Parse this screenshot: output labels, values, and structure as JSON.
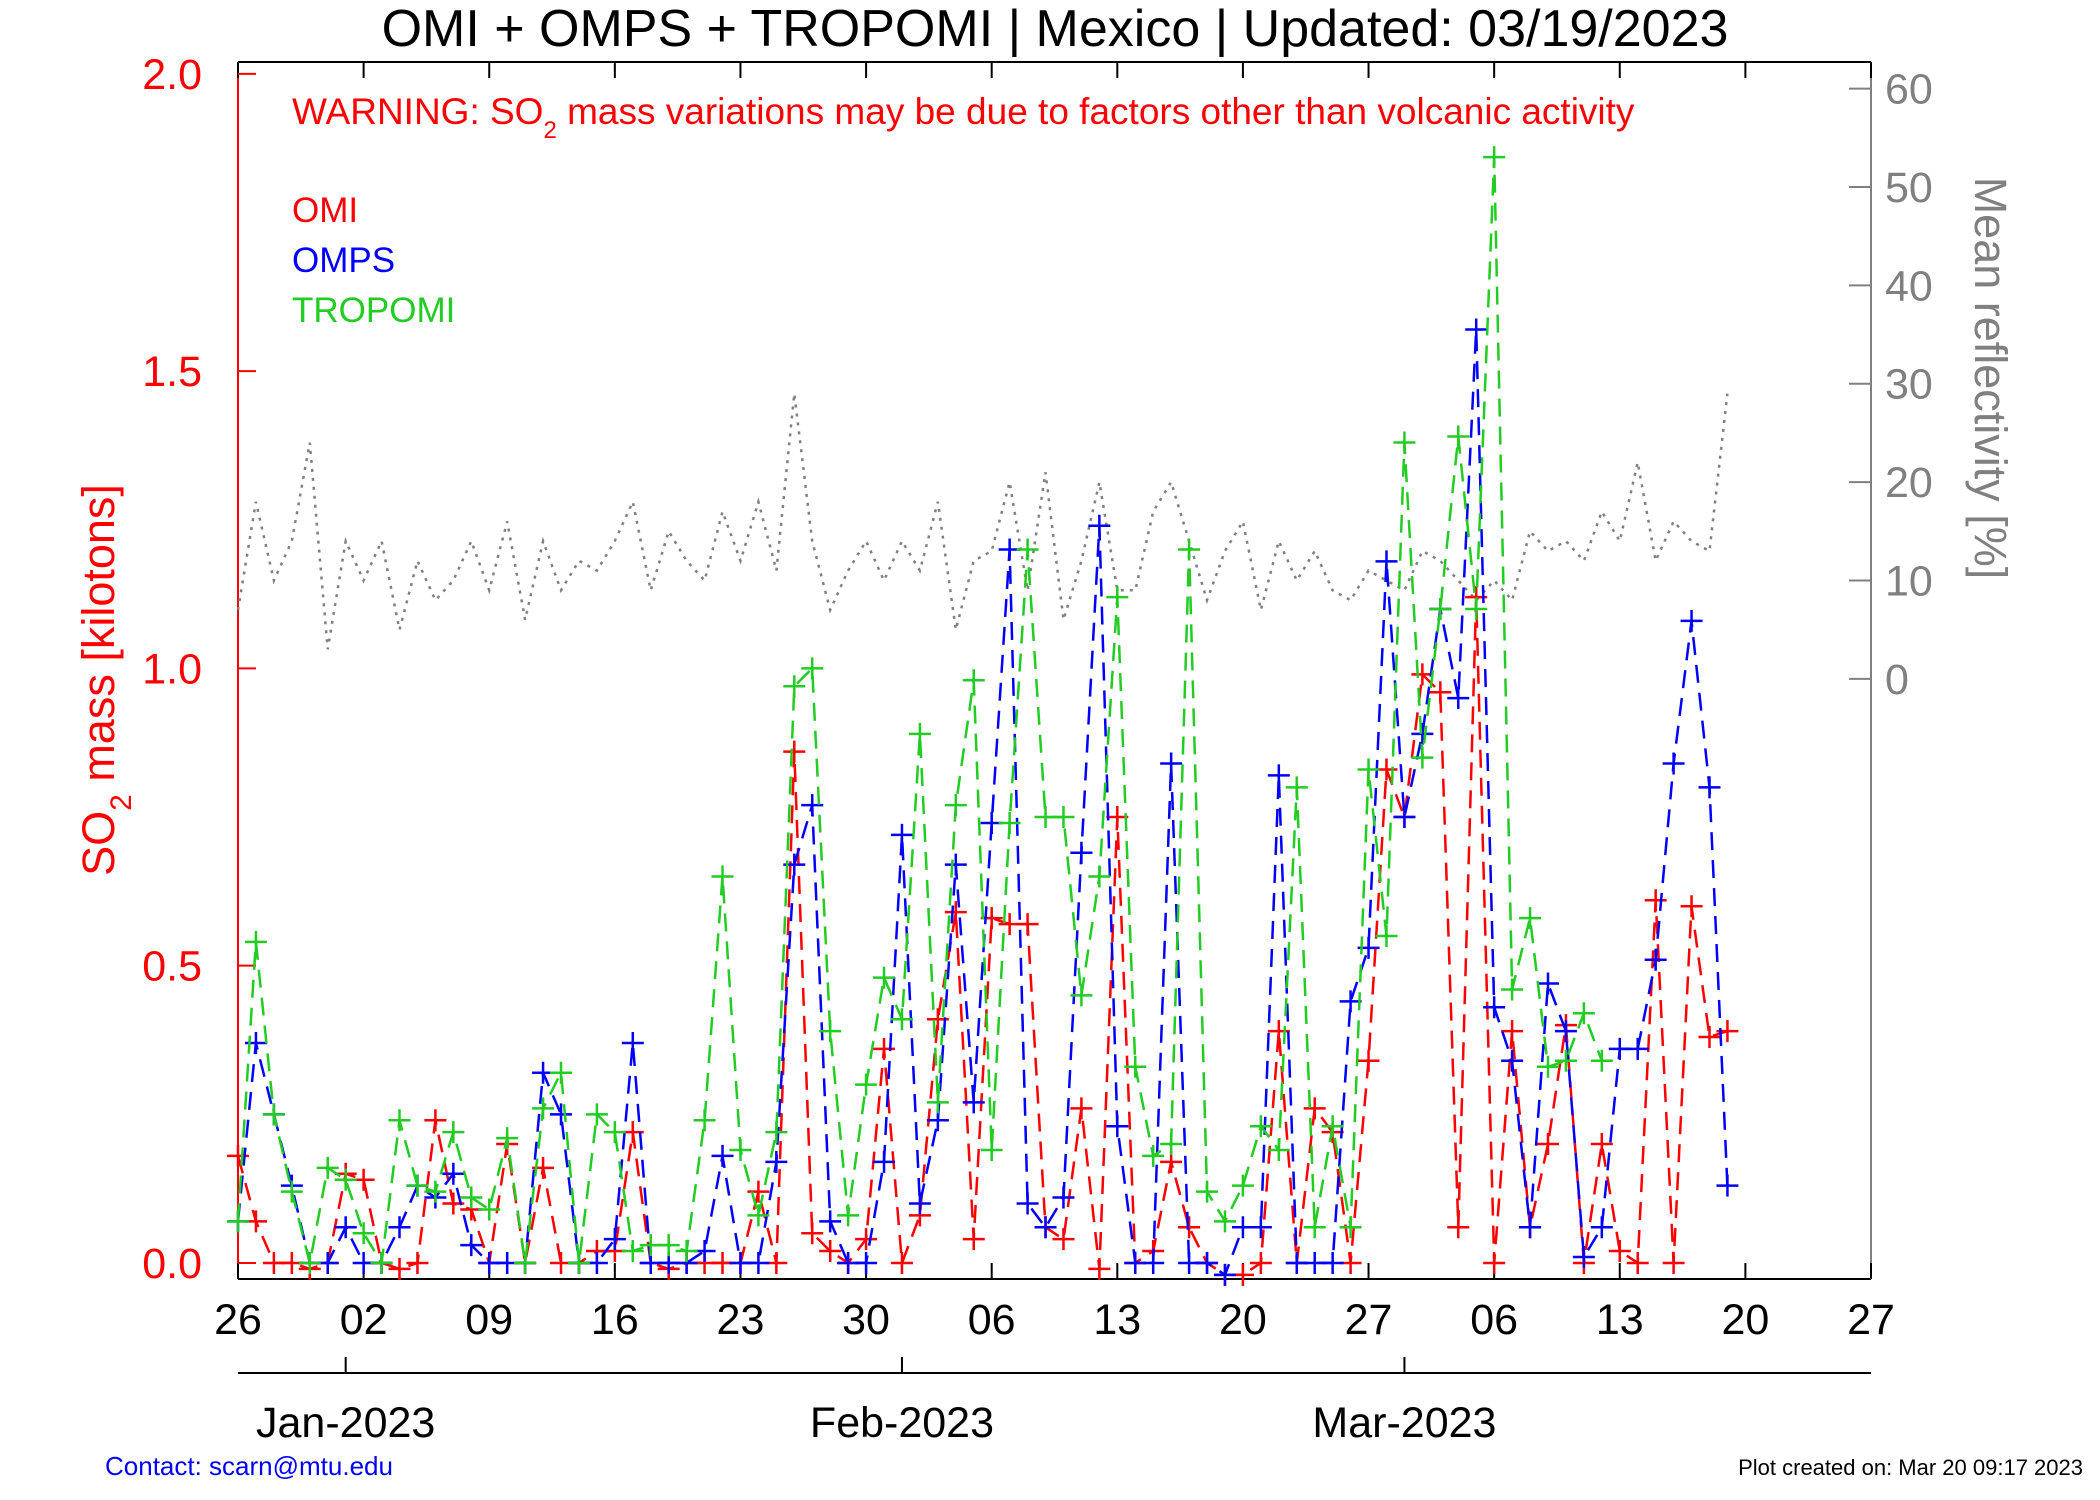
{
  "chart_data": {
    "type": "line",
    "title": "OMI + OMPS + TROPOMI | Mexico | Updated: 03/19/2023",
    "annotation": [
      "WARNING: SO",
      "2",
      " mass variations may be due to factors other than volcanic activity"
    ],
    "annotation_color": "#ff0000",
    "ylabel": [
      "SO",
      "2",
      " mass [kilotons]"
    ],
    "y_color": "#ff0000",
    "y2label": "Mean reflectivity [%]",
    "y2_color": "#808080",
    "x": [
      "2022-12-26",
      "2022-12-27",
      "2022-12-28",
      "2022-12-29",
      "2022-12-30",
      "2022-12-31",
      "2023-01-01",
      "2023-01-02",
      "2023-01-03",
      "2023-01-04",
      "2023-01-05",
      "2023-01-06",
      "2023-01-07",
      "2023-01-08",
      "2023-01-09",
      "2023-01-10",
      "2023-01-11",
      "2023-01-12",
      "2023-01-13",
      "2023-01-14",
      "2023-01-15",
      "2023-01-16",
      "2023-01-17",
      "2023-01-18",
      "2023-01-19",
      "2023-01-20",
      "2023-01-21",
      "2023-01-22",
      "2023-01-23",
      "2023-01-24",
      "2023-01-25",
      "2023-01-26",
      "2023-01-27",
      "2023-01-28",
      "2023-01-29",
      "2023-01-30",
      "2023-01-31",
      "2023-02-01",
      "2023-02-02",
      "2023-02-03",
      "2023-02-04",
      "2023-02-05",
      "2023-02-06",
      "2023-02-07",
      "2023-02-08",
      "2023-02-09",
      "2023-02-10",
      "2023-02-11",
      "2023-02-12",
      "2023-02-13",
      "2023-02-14",
      "2023-02-15",
      "2023-02-16",
      "2023-02-17",
      "2023-02-18",
      "2023-02-19",
      "2023-02-20",
      "2023-02-21",
      "2023-02-22",
      "2023-02-23",
      "2023-02-24",
      "2023-02-25",
      "2023-02-26",
      "2023-02-27",
      "2023-02-28",
      "2023-03-01",
      "2023-03-02",
      "2023-03-03",
      "2023-03-04",
      "2023-03-05",
      "2023-03-06",
      "2023-03-07",
      "2023-03-08",
      "2023-03-09",
      "2023-03-10",
      "2023-03-11",
      "2023-03-12",
      "2023-03-13",
      "2023-03-14",
      "2023-03-15",
      "2023-03-16",
      "2023-03-17",
      "2023-03-18",
      "2023-03-19"
    ],
    "xlim": [
      "2022-12-26",
      "2023-03-27"
    ],
    "xticks": [
      {
        "value": "2022-12-26",
        "label": "26"
      },
      {
        "value": "2023-01-02",
        "label": "02"
      },
      {
        "value": "2023-01-09",
        "label": "09"
      },
      {
        "value": "2023-01-16",
        "label": "16"
      },
      {
        "value": "2023-01-23",
        "label": "23"
      },
      {
        "value": "2023-01-30",
        "label": "30"
      },
      {
        "value": "2023-02-06",
        "label": "06"
      },
      {
        "value": "2023-02-13",
        "label": "13"
      },
      {
        "value": "2023-02-20",
        "label": "20"
      },
      {
        "value": "2023-02-27",
        "label": "27"
      },
      {
        "value": "2023-03-06",
        "label": "06"
      },
      {
        "value": "2023-03-13",
        "label": "13"
      },
      {
        "value": "2023-03-20",
        "label": "20"
      },
      {
        "value": "2023-03-27",
        "label": "27"
      }
    ],
    "month_ticks": [
      {
        "value": "2023-01-01",
        "label": "Jan-2023"
      },
      {
        "value": "2023-02-01",
        "label": "Feb-2023"
      },
      {
        "value": "2023-03-01",
        "label": "Mar-2023"
      }
    ],
    "ylim": [
      -0.027,
      2.02
    ],
    "yticks": [
      {
        "value": 0,
        "label": "0.0"
      },
      {
        "value": 0.5,
        "label": "0.5"
      },
      {
        "value": 1,
        "label": "1.0"
      },
      {
        "value": 1.5,
        "label": "1.5"
      },
      {
        "value": 2,
        "label": "2.0"
      }
    ],
    "y2lim": [
      -61,
      62.7
    ],
    "y2ticks": [
      0,
      10,
      20,
      30,
      40,
      50,
      60
    ],
    "series": [
      {
        "name": "OMI",
        "color": "#ff0000",
        "marker": "+",
        "style": "dashed",
        "values": [
          0.18,
          0.07,
          0,
          0,
          -0.01,
          0,
          0.15,
          0.14,
          0,
          -0.01,
          0,
          0.24,
          0.1,
          0.09,
          0,
          0.2,
          0,
          0.16,
          0,
          0,
          0.02,
          0.02,
          0.22,
          0,
          -0.01,
          0,
          0,
          0,
          0,
          0.12,
          0,
          0.86,
          0.05,
          0.02,
          0,
          0.04,
          0.36,
          0,
          0.08,
          0.41,
          0.59,
          0.04,
          0.58,
          0.57,
          0.57,
          0.06,
          0.04,
          0.26,
          -0.01,
          0.75,
          0,
          0.02,
          0.17,
          0.06,
          0,
          -0.02,
          -0.02,
          0,
          0.39,
          0,
          0.26,
          0.22,
          0,
          0.34,
          0.83,
          0.75,
          0.99,
          0.96,
          0.06,
          1.12,
          0,
          0.39,
          0.06,
          0.2,
          0.4,
          0,
          0.2,
          0.02,
          0,
          0.61,
          0,
          0.6,
          0.38,
          0.39
        ]
      },
      {
        "name": "OMPS",
        "color": "#0000ff",
        "marker": "+",
        "style": "dashed",
        "values": [
          0.07,
          0.37,
          0.25,
          0.13,
          0,
          0,
          0.06,
          0,
          0,
          0.06,
          0.13,
          0.11,
          0.15,
          0.03,
          0,
          0,
          0,
          0.32,
          0.25,
          0,
          0,
          0.04,
          0.37,
          0,
          0,
          0,
          0.02,
          0.18,
          0,
          0,
          0.17,
          0.67,
          0.77,
          0.07,
          0,
          0,
          0.17,
          0.72,
          0.1,
          0.24,
          0.67,
          0.27,
          0.74,
          1.2,
          0.1,
          0.06,
          0.11,
          0.69,
          1.24,
          0.23,
          0,
          0,
          0.84,
          0,
          0,
          -0.02,
          0.06,
          0.06,
          0.82,
          0,
          0,
          0,
          0.44,
          0.53,
          1.18,
          0.75,
          0.89,
          1.1,
          0.95,
          1.57,
          0.43,
          0.34,
          0.06,
          0.47,
          0.39,
          0.01,
          0.06,
          0.36,
          0.36,
          0.51,
          0.84,
          1.08,
          0.8,
          0.13
        ]
      },
      {
        "name": "TROPOMI",
        "color": "#22cc22",
        "marker": "+",
        "style": "dashed",
        "values": [
          0.07,
          0.54,
          0.25,
          0.12,
          0,
          0.16,
          0.14,
          0.05,
          0,
          0.24,
          0.13,
          0.12,
          0.22,
          0.11,
          0.09,
          0.21,
          0,
          0.26,
          0.32,
          0,
          0.25,
          0.22,
          0.02,
          0.03,
          0.03,
          0.02,
          0.24,
          0.65,
          0.19,
          0.08,
          0.22,
          0.97,
          1.0,
          0.39,
          0.08,
          0.3,
          0.48,
          0.41,
          0.89,
          0.27,
          0.77,
          0.98,
          0.19,
          0.74,
          1.2,
          0.75,
          0.75,
          0.45,
          0.65,
          1.12,
          0.33,
          0.18,
          0.2,
          1.2,
          0.12,
          0.07,
          0.13,
          0.23,
          0.19,
          0.8,
          0.06,
          0.23,
          0.06,
          0.83,
          0.55,
          1.38,
          0.85,
          1.1,
          1.39,
          1.1,
          1.86,
          0.46,
          0.58,
          0.33,
          0.34,
          0.42,
          0.34,
          null,
          null,
          null,
          null,
          null,
          null,
          null
        ]
      },
      {
        "color": "#808080",
        "style": "dotted",
        "axis": "y2",
        "values": [
          7,
          18,
          10,
          14,
          24,
          3,
          14,
          10,
          14,
          5,
          12,
          8,
          10,
          14,
          9,
          16,
          6,
          14,
          9,
          12,
          11,
          14,
          18,
          9,
          15,
          12,
          10,
          17,
          12,
          18,
          11,
          29,
          14,
          7,
          11,
          14,
          10,
          14,
          11,
          18,
          5,
          12,
          13,
          20,
          9,
          21,
          6,
          12,
          20,
          9,
          9,
          17,
          20,
          14,
          8,
          13,
          16,
          7,
          14,
          10,
          13,
          9,
          8,
          11,
          10,
          9,
          13,
          12,
          10,
          8,
          10,
          8,
          15,
          13,
          14,
          12,
          17,
          14,
          22,
          12,
          16,
          14,
          13,
          29
        ]
      }
    ]
  },
  "footer": {
    "contact": "Contact: scarn@mtu.edu",
    "created": "Plot created on: Mar 20 09:17 2023"
  }
}
